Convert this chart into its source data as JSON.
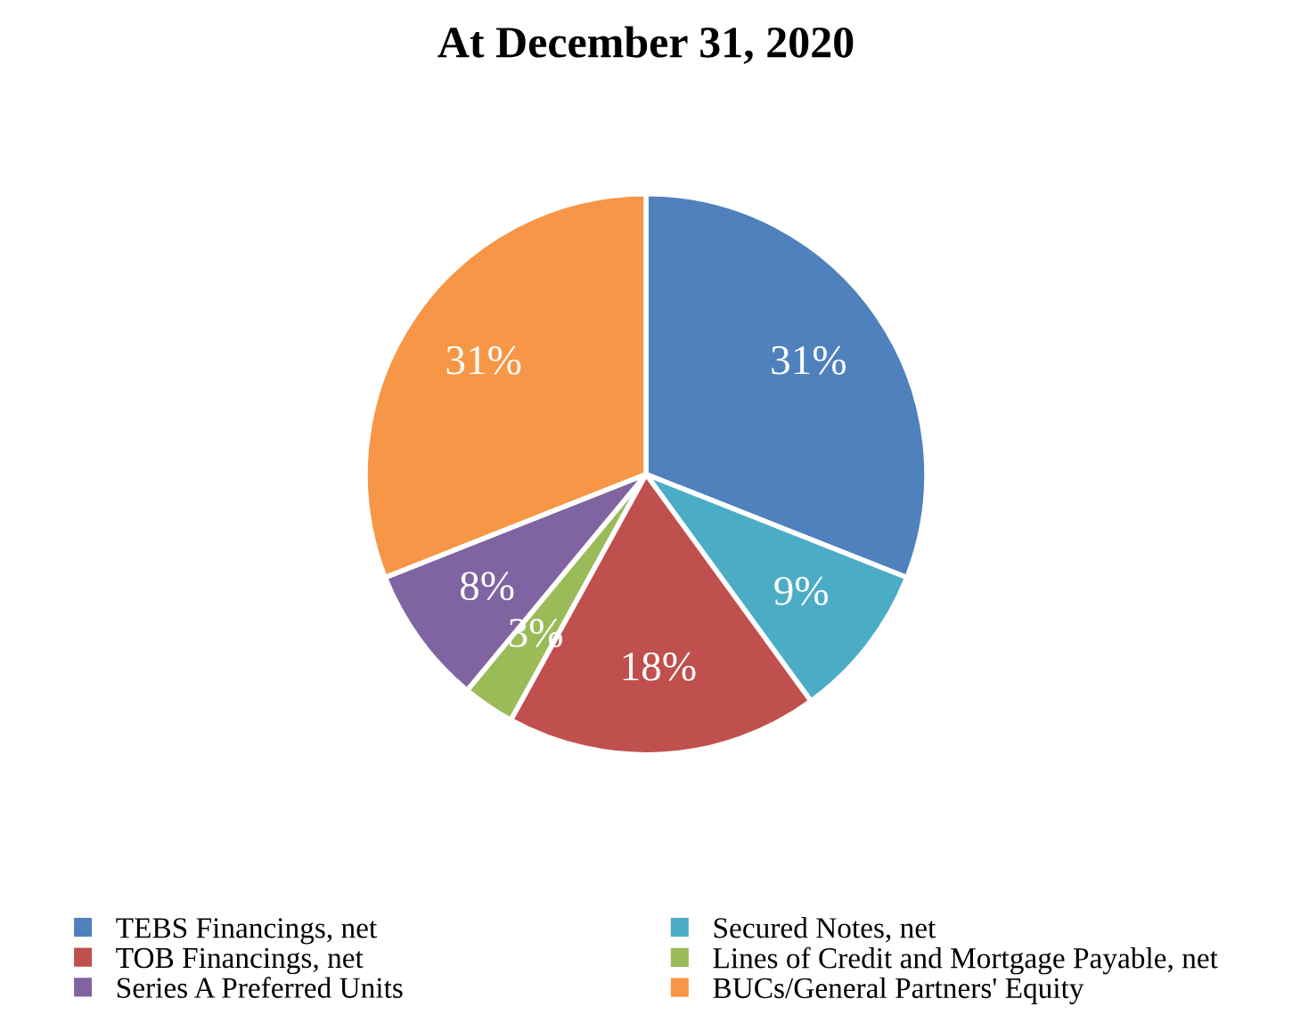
{
  "chart_data": {
    "type": "pie",
    "title": "At December 31, 2020",
    "categories": [
      "TEBS Financings, net",
      "Secured Notes, net",
      "TOB Financings, net",
      "Lines of Credit and Mortgage Payable, net",
      "Series A Preferred Units",
      "BUCs/General Partners' Equity"
    ],
    "values": [
      31,
      9,
      18,
      3,
      8,
      31
    ],
    "value_labels": [
      "31%",
      "9%",
      "18%",
      "3%",
      "8%",
      "31%"
    ],
    "colors": [
      "#4f81bd",
      "#4bacc6",
      "#c0504d",
      "#9bbb59",
      "#8064a2",
      "#f79646"
    ],
    "legend": "bottom"
  }
}
